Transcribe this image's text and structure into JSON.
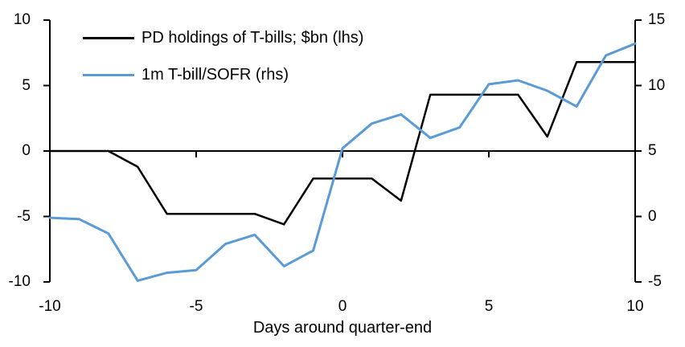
{
  "chart_data": {
    "type": "line",
    "title": "",
    "xlabel": "Days around quarter-end",
    "x": [
      -10,
      -9,
      -8,
      -7,
      -6,
      -5,
      -4,
      -3,
      -2,
      -1,
      0,
      1,
      2,
      3,
      4,
      5,
      6,
      7,
      8,
      9,
      10
    ],
    "series": [
      {
        "name": "PD holdings of T-bills; $bn (lhs)",
        "axis": "left",
        "color": "#000000",
        "values": [
          0,
          0,
          0,
          -1.2,
          -4.8,
          -4.8,
          -4.8,
          -4.8,
          -5.6,
          -2.1,
          -2.1,
          -2.1,
          -3.8,
          4.3,
          4.3,
          4.3,
          4.3,
          1.1,
          6.8,
          6.8,
          6.8
        ]
      },
      {
        "name": "1m T-bill/SOFR (rhs)",
        "axis": "right",
        "color": "#5B9BD5",
        "values": [
          -0.1,
          -0.2,
          -1.3,
          -4.9,
          -4.3,
          -4.1,
          -2.1,
          -1.4,
          -3.8,
          -2.6,
          5.2,
          7.1,
          7.8,
          6.0,
          6.8,
          10.1,
          10.4,
          9.6,
          8.4,
          12.3,
          13.2
        ]
      }
    ],
    "left_axis": {
      "min": -10,
      "max": 10,
      "tick_labels": [
        "10",
        "5",
        "0",
        "-5",
        "-10"
      ],
      "tick_values": [
        10,
        5,
        0,
        -5,
        -10
      ]
    },
    "right_axis": {
      "min": -5,
      "max": 15,
      "tick_labels": [
        "15",
        "10",
        "5",
        "0",
        "-5"
      ],
      "tick_values": [
        15,
        10,
        5,
        0,
        -5
      ]
    },
    "x_axis": {
      "min": -10,
      "max": 10,
      "tick_labels": [
        "-10",
        "-5",
        "0",
        "5",
        "10"
      ],
      "tick_values": [
        -10,
        -5,
        0,
        5,
        10
      ],
      "inner_tick_values": [
        -5,
        0,
        5
      ]
    },
    "grid": false,
    "legend_position": "top-left-inside"
  },
  "legend": {
    "items": [
      {
        "label": "PD holdings of T-bills; $bn (lhs)",
        "color": "#000000"
      },
      {
        "label": "1m T-bill/SOFR (rhs)",
        "color": "#5B9BD5"
      }
    ]
  },
  "colors": {
    "series_pd": "#000000",
    "series_sofr": "#5B9BD5",
    "axis": "#000000",
    "text": "#000000",
    "background": "#FFFFFF"
  }
}
